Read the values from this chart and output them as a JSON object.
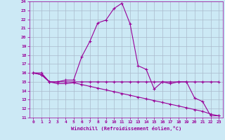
{
  "xlabel": "Windchill (Refroidissement éolien,°C)",
  "ylabel": "",
  "xlim": [
    -0.5,
    23.5
  ],
  "ylim": [
    11,
    24
  ],
  "yticks": [
    11,
    12,
    13,
    14,
    15,
    16,
    17,
    18,
    19,
    20,
    21,
    22,
    23,
    24
  ],
  "xticks": [
    0,
    1,
    2,
    3,
    4,
    5,
    6,
    7,
    8,
    9,
    10,
    11,
    12,
    13,
    14,
    15,
    16,
    17,
    18,
    19,
    20,
    21,
    22,
    23
  ],
  "bg_color": "#cce9f5",
  "line_color": "#990099",
  "grid_color": "#aabbcc",
  "line1_x": [
    0,
    1,
    2,
    3,
    4,
    5,
    6,
    7,
    8,
    9,
    10,
    11,
    12,
    13,
    14,
    15,
    16,
    17,
    18,
    19,
    20,
    21,
    22,
    23
  ],
  "line1_y": [
    16,
    16,
    15,
    15,
    15.2,
    15.2,
    17.8,
    19.5,
    21.6,
    21.9,
    23.2,
    23.8,
    21.5,
    16.8,
    16.4,
    14.2,
    15,
    14.8,
    15,
    15,
    13.2,
    12.8,
    11.2,
    11.2
  ],
  "line2_x": [
    0,
    1,
    2,
    3,
    4,
    5,
    6,
    7,
    8,
    9,
    10,
    11,
    12,
    13,
    14,
    15,
    16,
    17,
    18,
    19,
    20,
    21,
    22,
    23
  ],
  "line2_y": [
    16,
    15.8,
    15,
    14.8,
    14.8,
    14.9,
    14.7,
    14.5,
    14.3,
    14.1,
    13.9,
    13.7,
    13.5,
    13.3,
    13.1,
    12.9,
    12.7,
    12.5,
    12.3,
    12.1,
    11.9,
    11.7,
    11.4,
    11.2
  ],
  "line3_x": [
    0,
    1,
    2,
    3,
    4,
    5,
    6,
    7,
    8,
    9,
    10,
    11,
    12,
    13,
    14,
    15,
    16,
    17,
    18,
    19,
    20,
    21,
    22,
    23
  ],
  "line3_y": [
    16,
    15.8,
    15,
    15,
    15,
    15,
    15,
    15,
    15,
    15,
    15,
    15,
    15,
    15,
    15,
    15,
    15,
    15,
    15,
    15,
    15,
    15,
    15,
    15
  ]
}
